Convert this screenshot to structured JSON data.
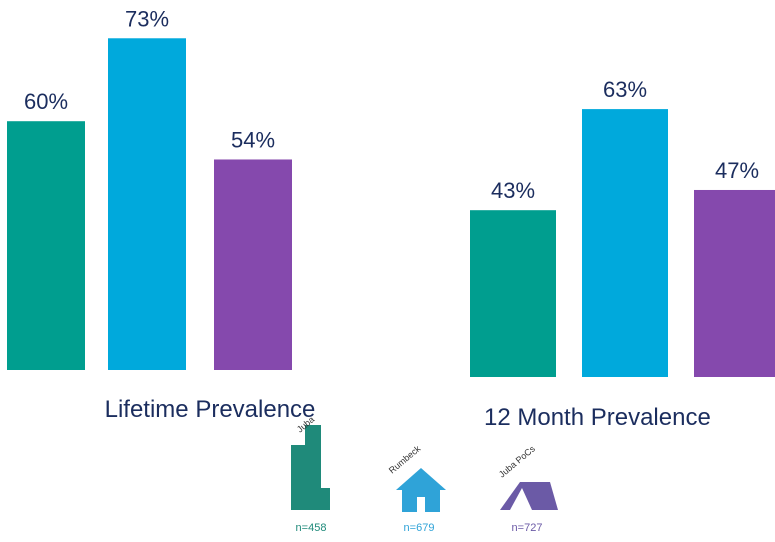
{
  "chart_data": [
    {
      "type": "bar",
      "categories": [
        "Lifetime Prevalence"
      ],
      "ylim": [
        21,
        79
      ],
      "series": [
        {
          "color": "#009e8f",
          "values": [
            60
          ],
          "value_labels": [
            "60%"
          ]
        },
        {
          "color": "#00a9dc",
          "values": [
            73
          ],
          "value_labels": [
            "73%"
          ]
        },
        {
          "color": "#8549ad",
          "values": [
            54
          ],
          "value_labels": [
            "54%"
          ]
        }
      ]
    },
    {
      "type": "bar",
      "categories": [
        "12 Month Prevalence"
      ],
      "ylim": [
        10,
        83
      ],
      "series": [
        {
          "color": "#009e8f",
          "values": [
            43
          ],
          "value_labels": [
            "43%"
          ]
        },
        {
          "color": "#00a9dc",
          "values": [
            63
          ],
          "value_labels": [
            "63%"
          ]
        },
        {
          "color": "#8549ad",
          "values": [
            47
          ],
          "value_labels": [
            "47%"
          ]
        }
      ]
    }
  ],
  "legend": [
    {
      "name": "Juba",
      "sample": "n=458",
      "color": "#1f8a7a"
    },
    {
      "name": "Rumbeck",
      "sample": "n=679",
      "color": "#2fa3d8"
    },
    {
      "name": "Juba PoCs",
      "sample": "n=727",
      "color": "#6b5aa6"
    }
  ]
}
